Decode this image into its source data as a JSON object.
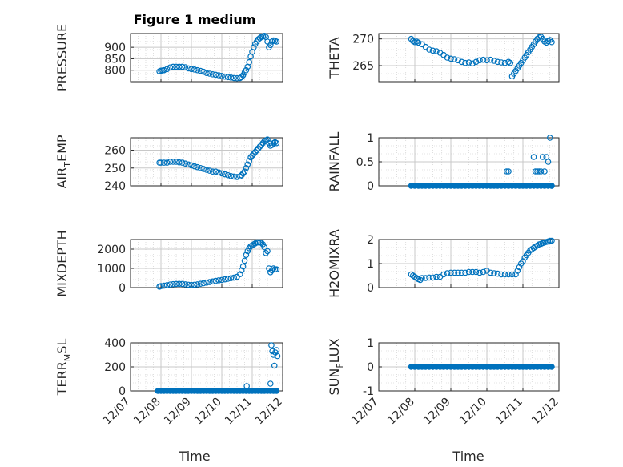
{
  "figure": {
    "title": "Figure 1 medium"
  },
  "colors": {
    "marker": "#0072bd",
    "grid": "#c8c8c8",
    "axis": "#262626"
  },
  "chart_data": [
    {
      "type": "scatter",
      "title": "Figure 1 medium",
      "xlabel": "",
      "ylabel": "PRESSURE",
      "ylabel_sub": "",
      "ylabel_tail": "",
      "xlim": [
        "12/07",
        "12/12"
      ],
      "ylim": [
        750,
        960
      ],
      "yticks": [
        800,
        850,
        900
      ],
      "yticklabels": [
        "800",
        "850",
        "900"
      ],
      "xticklabels": [],
      "grid": true,
      "x": [
        7.95,
        8.0,
        8.05,
        8.1,
        8.2,
        8.3,
        8.4,
        8.5,
        8.6,
        8.7,
        8.8,
        8.9,
        9.0,
        9.1,
        9.2,
        9.3,
        9.4,
        9.5,
        9.6,
        9.7,
        9.8,
        9.9,
        10.0,
        10.1,
        10.2,
        10.3,
        10.4,
        10.5,
        10.6,
        10.65,
        10.7,
        10.75,
        10.8,
        10.85,
        10.9,
        10.95,
        11.0,
        11.05,
        11.1,
        11.15,
        11.2,
        11.25,
        11.3,
        11.35,
        11.4,
        11.45,
        11.5,
        11.55,
        11.6,
        11.65,
        11.7,
        11.75,
        11.8
      ],
      "y": [
        795,
        798,
        799,
        800,
        805,
        812,
        815,
        815,
        815,
        815,
        813,
        808,
        805,
        803,
        800,
        797,
        793,
        788,
        785,
        782,
        780,
        778,
        775,
        772,
        770,
        768,
        766,
        765,
        766,
        770,
        778,
        790,
        800,
        815,
        835,
        860,
        880,
        900,
        915,
        925,
        935,
        940,
        945,
        948,
        950,
        945,
        925,
        900,
        910,
        925,
        930,
        928,
        925
      ]
    },
    {
      "type": "scatter",
      "ylabel": "THETA",
      "ylabel_sub": "",
      "ylabel_tail": "",
      "xlim": [
        "12/07",
        "12/12"
      ],
      "ylim": [
        262,
        271
      ],
      "yticks": [
        265,
        270
      ],
      "yticklabels": [
        "265",
        "270"
      ],
      "xticklabels": [],
      "grid": true,
      "x": [
        7.9,
        7.95,
        8.0,
        8.05,
        8.1,
        8.2,
        8.3,
        8.4,
        8.5,
        8.6,
        8.7,
        8.8,
        8.9,
        9.0,
        9.1,
        9.2,
        9.3,
        9.4,
        9.5,
        9.6,
        9.7,
        9.8,
        9.9,
        10.0,
        10.1,
        10.2,
        10.3,
        10.4,
        10.5,
        10.6,
        10.65,
        10.7,
        10.75,
        10.8,
        10.85,
        10.9,
        10.95,
        11.0,
        11.05,
        11.1,
        11.15,
        11.2,
        11.25,
        11.3,
        11.35,
        11.4,
        11.45,
        11.5,
        11.55,
        11.6,
        11.65,
        11.7,
        11.75,
        11.8
      ],
      "y": [
        270.0,
        269.6,
        269.4,
        269.5,
        269.3,
        269.0,
        268.5,
        268.0,
        267.8,
        267.7,
        267.4,
        267.0,
        266.5,
        266.3,
        266.2,
        266.0,
        265.7,
        265.5,
        265.6,
        265.4,
        265.7,
        266.0,
        266.1,
        266.0,
        266.1,
        265.9,
        265.7,
        265.6,
        265.5,
        265.7,
        265.5,
        263.0,
        263.5,
        264.0,
        264.5,
        265.0,
        265.5,
        266.0,
        266.5,
        267.0,
        267.5,
        268.0,
        268.5,
        269.0,
        269.5,
        270.0,
        270.3,
        270.4,
        270.0,
        269.5,
        269.3,
        269.6,
        269.8,
        269.4
      ]
    },
    {
      "type": "scatter",
      "ylabel": "AIR",
      "ylabel_sub": "T",
      "ylabel_tail": "EMP",
      "xlim": [
        "12/07",
        "12/12"
      ],
      "ylim": [
        240,
        267
      ],
      "yticks": [
        240,
        250,
        260
      ],
      "yticklabels": [
        "240",
        "250",
        "260"
      ],
      "xticklabels": [],
      "grid": true,
      "x": [
        7.95,
        8.0,
        8.1,
        8.2,
        8.3,
        8.4,
        8.5,
        8.6,
        8.7,
        8.8,
        8.9,
        9.0,
        9.1,
        9.2,
        9.3,
        9.4,
        9.5,
        9.6,
        9.7,
        9.8,
        9.9,
        10.0,
        10.1,
        10.2,
        10.3,
        10.4,
        10.5,
        10.6,
        10.65,
        10.7,
        10.75,
        10.8,
        10.85,
        10.9,
        10.95,
        11.0,
        11.05,
        11.1,
        11.15,
        11.2,
        11.25,
        11.3,
        11.35,
        11.4,
        11.45,
        11.5,
        11.55,
        11.6,
        11.65,
        11.7,
        11.75,
        11.8
      ],
      "y": [
        253,
        253,
        253,
        253,
        253.5,
        253.5,
        253.5,
        253.2,
        253,
        252.5,
        252,
        251.5,
        251,
        250.5,
        250,
        249.5,
        249,
        248.5,
        248,
        248,
        247.5,
        247,
        246.5,
        246,
        245.5,
        245.2,
        245,
        245.3,
        246,
        247,
        248,
        250,
        252,
        254,
        256,
        257,
        258,
        259,
        260,
        261,
        262,
        263,
        264,
        265,
        265.5,
        266,
        264,
        262.5,
        263,
        264,
        264.5,
        264
      ]
    },
    {
      "type": "scatter",
      "ylabel": "RAINFALL",
      "ylabel_sub": "",
      "ylabel_tail": "",
      "xlim": [
        "12/07",
        "12/12"
      ],
      "ylim": [
        0,
        1
      ],
      "yticks": [
        0,
        0.5,
        1
      ],
      "yticklabels": [
        "0",
        "0.5",
        "1"
      ],
      "xticklabels": [],
      "grid": true,
      "x": [
        7.9,
        8.0,
        8.1,
        8.2,
        8.3,
        8.4,
        8.5,
        8.6,
        8.7,
        8.8,
        8.9,
        9.0,
        9.1,
        9.2,
        9.3,
        9.4,
        9.5,
        9.6,
        9.7,
        9.8,
        9.9,
        10.0,
        10.1,
        10.2,
        10.3,
        10.4,
        10.5,
        10.6,
        10.7,
        10.8,
        10.9,
        11.0,
        11.1,
        11.2,
        11.3,
        11.4,
        11.5,
        11.6,
        11.7,
        11.8,
        10.55,
        10.6,
        11.3,
        11.35,
        11.4,
        11.45,
        11.5,
        11.55,
        11.6,
        11.65,
        11.7,
        11.75,
        11.8
      ],
      "y": [
        0,
        0,
        0,
        0,
        0,
        0,
        0,
        0,
        0,
        0,
        0,
        0,
        0,
        0,
        0,
        0,
        0,
        0,
        0,
        0,
        0,
        0,
        0,
        0,
        0,
        0,
        0,
        0,
        0,
        0,
        0,
        0,
        0,
        0,
        0,
        0,
        0,
        0,
        0,
        0,
        0.3,
        0.3,
        0.6,
        0.3,
        0.3,
        0.3,
        0.3,
        0.6,
        0.3,
        0.6,
        0.5,
        1.0,
        0
      ]
    },
    {
      "type": "scatter",
      "ylabel": "MIXDEPTH",
      "ylabel_sub": "",
      "ylabel_tail": "",
      "xlim": [
        "12/07",
        "12/12"
      ],
      "ylim": [
        0,
        2500
      ],
      "yticks": [
        0,
        1000,
        2000
      ],
      "yticklabels": [
        "0",
        "1000",
        "2000"
      ],
      "xticklabels": [],
      "grid": true,
      "x": [
        7.95,
        8.0,
        8.1,
        8.2,
        8.3,
        8.4,
        8.5,
        8.6,
        8.7,
        8.8,
        8.9,
        9.0,
        9.1,
        9.2,
        9.3,
        9.4,
        9.5,
        9.6,
        9.7,
        9.8,
        9.9,
        10.0,
        10.1,
        10.2,
        10.3,
        10.4,
        10.5,
        10.6,
        10.65,
        10.7,
        10.75,
        10.8,
        10.85,
        10.9,
        10.95,
        11.0,
        11.05,
        11.1,
        11.15,
        11.2,
        11.25,
        11.3,
        11.35,
        11.4,
        11.45,
        11.5,
        11.55,
        11.6,
        11.65,
        11.7,
        11.75,
        11.8
      ],
      "y": [
        50,
        80,
        100,
        130,
        160,
        180,
        190,
        195,
        190,
        170,
        150,
        140,
        150,
        170,
        200,
        230,
        260,
        290,
        320,
        350,
        380,
        400,
        430,
        460,
        490,
        520,
        560,
        700,
        900,
        1100,
        1400,
        1700,
        1900,
        2050,
        2150,
        2200,
        2250,
        2300,
        2350,
        2350,
        2350,
        2330,
        2250,
        2100,
        1800,
        1900,
        1000,
        800,
        900,
        1000,
        950,
        950
      ]
    },
    {
      "type": "scatter",
      "ylabel": "H2OMIXRA",
      "ylabel_sub": "",
      "ylabel_tail": "",
      "xlim": [
        "12/07",
        "12/12"
      ],
      "ylim": [
        0,
        2
      ],
      "yticks": [
        0,
        1,
        2
      ],
      "yticklabels": [
        "0",
        "1",
        "2"
      ],
      "xticklabels": [],
      "grid": true,
      "x": [
        7.9,
        7.95,
        8.0,
        8.05,
        8.1,
        8.15,
        8.2,
        8.3,
        8.4,
        8.5,
        8.6,
        8.7,
        8.8,
        8.9,
        9.0,
        9.1,
        9.2,
        9.3,
        9.4,
        9.5,
        9.6,
        9.7,
        9.8,
        9.9,
        10.0,
        10.1,
        10.2,
        10.3,
        10.4,
        10.5,
        10.6,
        10.7,
        10.8,
        10.85,
        10.9,
        10.95,
        11.0,
        11.05,
        11.1,
        11.15,
        11.2,
        11.25,
        11.3,
        11.35,
        11.4,
        11.45,
        11.5,
        11.55,
        11.6,
        11.65,
        11.7,
        11.75,
        11.8
      ],
      "y": [
        0.55,
        0.5,
        0.45,
        0.4,
        0.35,
        0.32,
        0.4,
        0.4,
        0.42,
        0.42,
        0.45,
        0.45,
        0.55,
        0.6,
        0.62,
        0.62,
        0.62,
        0.62,
        0.62,
        0.65,
        0.65,
        0.65,
        0.62,
        0.65,
        0.7,
        0.62,
        0.6,
        0.58,
        0.55,
        0.55,
        0.55,
        0.55,
        0.55,
        0.7,
        0.85,
        1.0,
        1.1,
        1.25,
        1.35,
        1.45,
        1.55,
        1.6,
        1.65,
        1.7,
        1.75,
        1.8,
        1.82,
        1.85,
        1.88,
        1.9,
        1.92,
        1.95,
        1.95
      ]
    },
    {
      "type": "scatter",
      "ylabel": "TERR",
      "ylabel_sub": "M",
      "ylabel_tail": "SL",
      "xlim": [
        "12/07",
        "12/12"
      ],
      "ylim": [
        0,
        400
      ],
      "yticks": [
        0,
        200,
        400
      ],
      "yticklabels": [
        "0",
        "200",
        "400"
      ],
      "xticklabels": [
        "12/07",
        "12/08",
        "12/09",
        "12/10",
        "12/11",
        "12/12"
      ],
      "grid": true,
      "x": [
        7.9,
        8.0,
        8.1,
        8.2,
        8.3,
        8.4,
        8.5,
        8.6,
        8.7,
        8.8,
        8.9,
        9.0,
        9.1,
        9.2,
        9.3,
        9.4,
        9.5,
        9.6,
        9.7,
        9.8,
        9.9,
        10.0,
        10.1,
        10.2,
        10.3,
        10.4,
        10.5,
        10.6,
        10.7,
        10.8,
        10.9,
        11.0,
        11.1,
        11.2,
        11.3,
        11.4,
        11.5,
        11.6,
        11.7,
        11.8,
        10.82,
        11.6,
        11.63,
        11.66,
        11.7,
        11.73,
        11.76,
        11.8,
        11.83
      ],
      "y": [
        0,
        0,
        0,
        0,
        0,
        0,
        0,
        0,
        0,
        0,
        0,
        0,
        0,
        0,
        0,
        0,
        0,
        0,
        0,
        0,
        0,
        0,
        0,
        0,
        0,
        0,
        0,
        0,
        0,
        0,
        0,
        0,
        0,
        0,
        0,
        0,
        0,
        0,
        0,
        0,
        40,
        60,
        380,
        330,
        300,
        210,
        320,
        340,
        290
      ]
    },
    {
      "type": "scatter",
      "ylabel": "SUN",
      "ylabel_sub": "F",
      "ylabel_tail": "LUX",
      "xlim": [
        "12/07",
        "12/12"
      ],
      "ylim": [
        -1,
        1
      ],
      "yticks": [
        -1,
        0,
        1
      ],
      "yticklabels": [
        "-1",
        "0",
        "1"
      ],
      "xticklabels": [
        "12/07",
        "12/08",
        "12/09",
        "12/10",
        "12/11",
        "12/12"
      ],
      "grid": true,
      "x": [
        7.9,
        8.0,
        8.1,
        8.2,
        8.3,
        8.4,
        8.5,
        8.6,
        8.7,
        8.8,
        8.9,
        9.0,
        9.1,
        9.2,
        9.3,
        9.4,
        9.5,
        9.6,
        9.7,
        9.8,
        9.9,
        10.0,
        10.1,
        10.2,
        10.3,
        10.4,
        10.5,
        10.6,
        10.7,
        10.8,
        10.9,
        11.0,
        11.1,
        11.2,
        11.3,
        11.4,
        11.5,
        11.6,
        11.7,
        11.8
      ],
      "y": [
        0,
        0,
        0,
        0,
        0,
        0,
        0,
        0,
        0,
        0,
        0,
        0,
        0,
        0,
        0,
        0,
        0,
        0,
        0,
        0,
        0,
        0,
        0,
        0,
        0,
        0,
        0,
        0,
        0,
        0,
        0,
        0,
        0,
        0,
        0,
        0,
        0,
        0,
        0,
        0
      ]
    }
  ],
  "xaxis": {
    "bottom_label_left": "Time",
    "bottom_label_right": "Time"
  }
}
